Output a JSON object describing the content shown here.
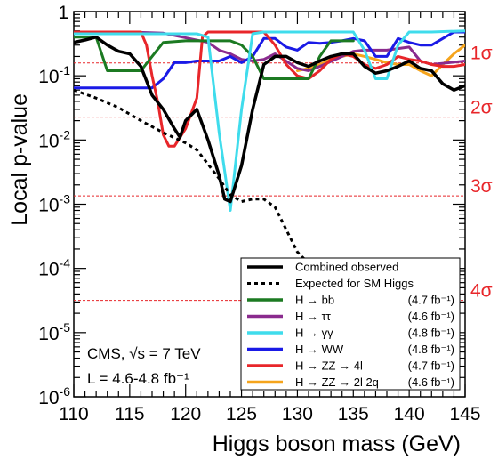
{
  "chart_data": {
    "type": "line",
    "xlabel": "Higgs boson mass (GeV)",
    "ylabel": "Local p-value",
    "xlim": [
      110,
      145
    ],
    "ylim": [
      1e-06,
      1
    ],
    "y_scale": "log",
    "x_ticks": [
      "110",
      "115",
      "120",
      "125",
      "130",
      "135",
      "140",
      "145"
    ],
    "y_ticks": [
      {
        "base": "1",
        "exp": ""
      },
      {
        "base": "10",
        "exp": "-1"
      },
      {
        "base": "10",
        "exp": "-2"
      },
      {
        "base": "10",
        "exp": "-3"
      },
      {
        "base": "10",
        "exp": "-4"
      },
      {
        "base": "10",
        "exp": "-5"
      },
      {
        "base": "10",
        "exp": "-6"
      }
    ],
    "sigma_lines": [
      {
        "label": "1σ",
        "p": 0.1587
      },
      {
        "label": "2σ",
        "p": 0.02275
      },
      {
        "label": "3σ",
        "p": 0.00135
      },
      {
        "label": "4σ",
        "p": 3.17e-05
      }
    ],
    "annotation": {
      "line1": "CMS, √s = 7 TeV",
      "line2": "L = 4.6-4.8 fb⁻¹"
    },
    "series": [
      {
        "name": "Combined observed",
        "lumi": "",
        "color": "#000000",
        "style": "solid",
        "x": [
          110,
          111,
          112,
          113,
          114,
          115,
          116,
          117,
          118,
          119,
          119.5,
          120,
          121,
          122,
          123,
          123.5,
          124,
          125,
          126,
          127,
          128,
          129,
          130,
          131,
          132,
          133,
          134,
          135,
          136,
          137,
          138,
          139,
          140,
          141,
          142,
          143,
          144,
          145
        ],
        "y": [
          0.33,
          0.36,
          0.4,
          0.3,
          0.24,
          0.22,
          0.14,
          0.05,
          0.03,
          0.015,
          0.011,
          0.02,
          0.03,
          0.01,
          0.0028,
          0.0012,
          0.0011,
          0.004,
          0.03,
          0.15,
          0.2,
          0.2,
          0.16,
          0.14,
          0.17,
          0.2,
          0.22,
          0.22,
          0.14,
          0.11,
          0.12,
          0.14,
          0.17,
          0.13,
          0.12,
          0.075,
          0.06,
          0.07
        ]
      },
      {
        "name": "Expected for SM Higgs",
        "lumi": "",
        "color": "#000000",
        "style": "dotted",
        "x": [
          110,
          112,
          114,
          116,
          118,
          120,
          121,
          122,
          123,
          124,
          125,
          126,
          127,
          128,
          129,
          130,
          131,
          132,
          133
        ],
        "y": [
          0.06,
          0.045,
          0.032,
          0.02,
          0.013,
          0.009,
          0.007,
          0.0042,
          0.0025,
          0.0014,
          0.0011,
          0.0012,
          0.0012,
          0.0009,
          0.0004,
          0.00018,
          0.00012,
          8e-05,
          5e-05
        ]
      },
      {
        "name": "H → bb",
        "lumi": "(4.7 fb⁻¹)",
        "color": "#1c7a22",
        "style": "solid",
        "x": [
          110,
          112,
          113,
          116,
          117,
          118,
          120,
          124,
          125,
          126,
          127,
          128,
          129,
          130,
          131,
          132,
          133,
          134,
          135
        ],
        "y": [
          0.4,
          0.4,
          0.12,
          0.12,
          0.2,
          0.33,
          0.35,
          0.35,
          0.3,
          0.2,
          0.09,
          0.09,
          0.09,
          0.09,
          0.09,
          0.2,
          0.35,
          0.35,
          0.35
        ]
      },
      {
        "name": "H → ττ",
        "lumi": "(4.6 fb⁻¹)",
        "color": "#8a2b8e",
        "style": "solid",
        "x": [
          110,
          115,
          118,
          122,
          123,
          124,
          125,
          126,
          127,
          128,
          130,
          131,
          132,
          134,
          135,
          136,
          138,
          140,
          141,
          142,
          145
        ],
        "y": [
          0.48,
          0.48,
          0.46,
          0.33,
          0.25,
          0.22,
          0.18,
          0.17,
          0.18,
          0.22,
          0.13,
          0.12,
          0.14,
          0.2,
          0.24,
          0.25,
          0.25,
          0.28,
          0.17,
          0.15,
          0.17
        ]
      },
      {
        "name": "H → γγ",
        "lumi": "(4.8 fb⁻¹)",
        "color": "#3fdcec",
        "style": "solid",
        "x": [
          110,
          111,
          112,
          113,
          114,
          115,
          116,
          117,
          118,
          119,
          120,
          121,
          122,
          123,
          124,
          125,
          126,
          127,
          128,
          130,
          132,
          134,
          135,
          136,
          137,
          138,
          139,
          140,
          142,
          145
        ],
        "y": [
          0.45,
          0.45,
          0.45,
          0.45,
          0.45,
          0.45,
          0.45,
          0.45,
          0.45,
          0.45,
          0.45,
          0.45,
          0.4,
          0.013,
          0.0008,
          0.03,
          0.45,
          0.48,
          0.48,
          0.48,
          0.48,
          0.48,
          0.48,
          0.25,
          0.09,
          0.09,
          0.3,
          0.48,
          0.48,
          0.5
        ]
      },
      {
        "name": "H → WW",
        "lumi": "(4.8 fb⁻¹)",
        "color": "#1a1ae6",
        "style": "solid",
        "x": [
          110,
          111,
          112,
          113,
          114,
          115,
          116,
          117,
          118,
          119,
          120,
          121,
          122,
          123,
          124,
          125,
          126,
          127,
          128,
          129,
          130,
          131,
          132,
          133,
          134,
          135,
          136,
          137,
          138,
          139,
          140,
          141,
          142,
          143,
          144,
          145
        ],
        "y": [
          0.065,
          0.065,
          0.065,
          0.065,
          0.065,
          0.065,
          0.065,
          0.065,
          0.09,
          0.16,
          0.16,
          0.17,
          0.17,
          0.17,
          0.2,
          0.16,
          0.2,
          0.38,
          0.38,
          0.28,
          0.25,
          0.33,
          0.32,
          0.33,
          0.35,
          0.38,
          0.35,
          0.2,
          0.2,
          0.38,
          0.33,
          0.3,
          0.3,
          0.38,
          0.48,
          0.48
        ]
      },
      {
        "name": "H → ZZ → 4l",
        "lumi": "(4.7 fb⁻¹)",
        "color": "#e8262a",
        "style": "solid",
        "x": [
          110,
          112,
          114,
          115,
          116,
          116.5,
          117,
          117.5,
          118,
          118.5,
          119,
          120,
          121,
          121.5,
          122,
          123,
          124,
          125,
          126,
          127,
          128,
          129,
          130,
          131,
          132,
          133,
          134,
          135,
          136,
          137,
          138,
          139,
          140,
          141,
          142,
          143,
          144,
          145
        ],
        "y": [
          0.48,
          0.48,
          0.48,
          0.48,
          0.48,
          0.3,
          0.1,
          0.04,
          0.012,
          0.008,
          0.008,
          0.015,
          0.045,
          0.4,
          0.48,
          0.48,
          0.48,
          0.48,
          0.48,
          0.48,
          0.3,
          0.15,
          0.1,
          0.09,
          0.12,
          0.18,
          0.22,
          0.2,
          0.15,
          0.13,
          0.15,
          0.2,
          0.18,
          0.17,
          0.15,
          0.14,
          0.14,
          0.15
        ]
      },
      {
        "name": "H → ZZ → 2l 2q",
        "lumi": "(4.6 fb⁻¹)",
        "color": "#f5a41c",
        "style": "solid",
        "x": [
          130,
          131,
          132,
          133,
          134,
          135,
          136,
          137,
          138,
          139,
          140,
          141,
          142,
          143,
          144,
          145
        ],
        "y": [
          0.12,
          0.13,
          0.15,
          0.18,
          0.2,
          0.22,
          0.2,
          0.18,
          0.16,
          0.15,
          0.15,
          0.12,
          0.1,
          0.15,
          0.22,
          0.3
        ]
      }
    ]
  }
}
